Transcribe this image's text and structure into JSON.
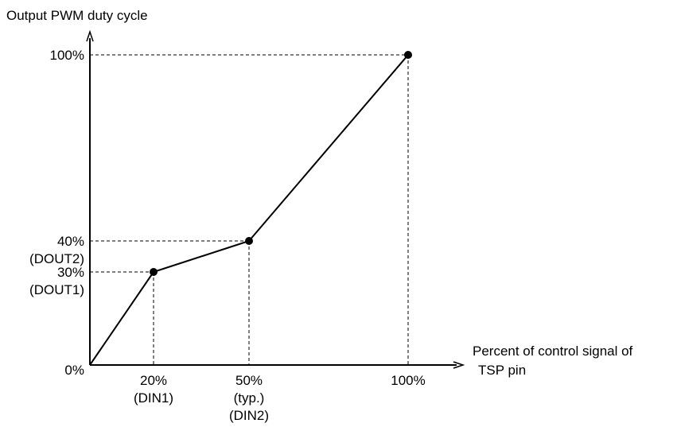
{
  "chart_data": {
    "type": "line",
    "title": "",
    "ylabel": "Output PWM duty cycle",
    "xlabel_lines": [
      "Percent of control signal of",
      "TSP pin"
    ],
    "xlim": [
      0,
      100
    ],
    "ylim": [
      0,
      100
    ],
    "grid": false,
    "series": [
      {
        "x": [
          0,
          20,
          50,
          100
        ],
        "y": [
          0,
          30,
          40,
          100
        ]
      }
    ],
    "markers": [
      {
        "x": 20,
        "y": 30
      },
      {
        "x": 50,
        "y": 40
      },
      {
        "x": 100,
        "y": 100
      }
    ],
    "origin_label": "0%",
    "x_ticks": [
      {
        "value": 20,
        "lines": [
          "20%",
          "(DIN1)"
        ]
      },
      {
        "value": 50,
        "lines": [
          "50%",
          "(typ.)",
          "(DIN2)"
        ]
      },
      {
        "value": 100,
        "lines": [
          "100%"
        ]
      }
    ],
    "y_ticks": [
      {
        "value": 100,
        "lines": [
          "100%"
        ]
      },
      {
        "value": 40,
        "lines": [
          "40%",
          "(DOUT2)"
        ]
      },
      {
        "value": 30,
        "lines": [
          "30%",
          "(DOUT1)"
        ]
      }
    ],
    "colors": {
      "line": "#000000",
      "marker": "#000000",
      "guide": "#000000",
      "axis": "#000000"
    }
  }
}
